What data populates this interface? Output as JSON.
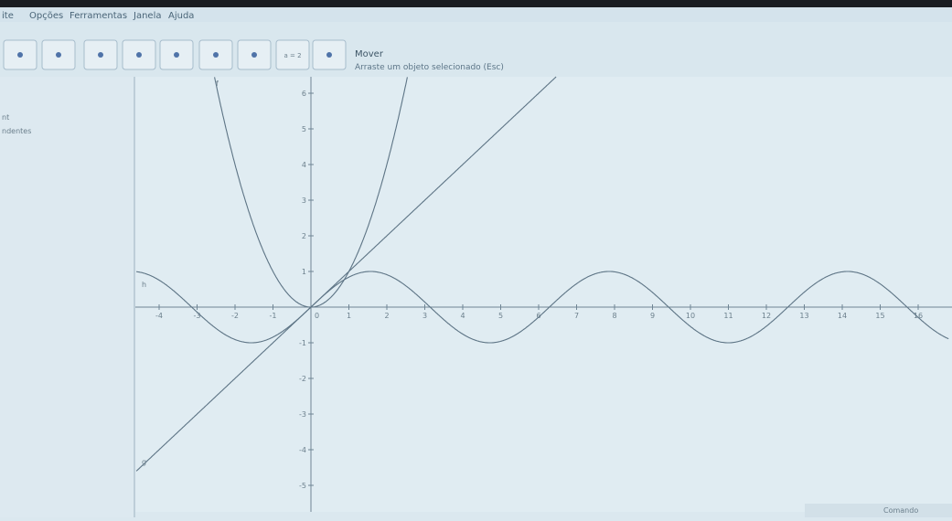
{
  "menu": [
    "ite",
    "Opções",
    "Ferramentas",
    "Janela",
    "Ajuda"
  ],
  "toolbar": {
    "slider_label": "a = 2",
    "tool_name": "Mover",
    "tool_hint": "Arraste um objeto selecionado (Esc)"
  },
  "algebra": [
    "nt",
    "ndentes"
  ],
  "graphics": {
    "x_ticks": [
      -4,
      -3,
      -2,
      -1,
      1,
      2,
      3,
      4,
      5,
      6,
      7,
      8,
      9,
      10,
      11,
      12,
      13,
      14,
      15,
      16
    ],
    "y_ticks": [
      -5,
      -4,
      -3,
      -2,
      -1,
      1,
      2,
      3,
      4,
      5,
      6
    ],
    "origin_label": "0",
    "curve_labels": [
      "f",
      "h",
      "g"
    ]
  },
  "input": {
    "label": "Comando"
  }
}
